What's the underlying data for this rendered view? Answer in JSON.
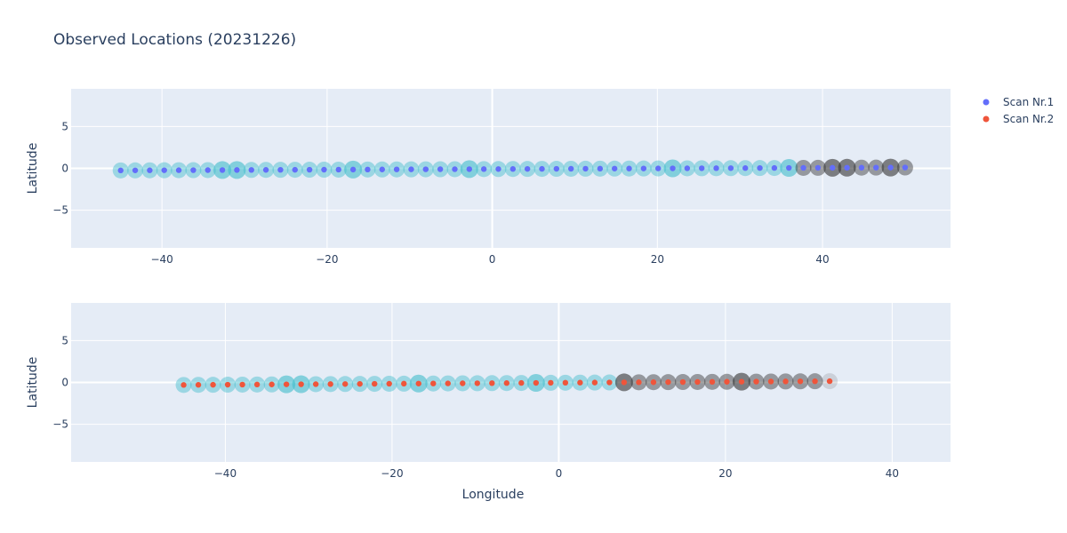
{
  "title": "Observed Locations (20231226)",
  "colors": {
    "plot_bg": "#e5ecf6",
    "grid": "#ffffff",
    "scan1": "#636efa",
    "scan2": "#ef553b",
    "halo_cyan": "#40bccc",
    "halo_dark": "#333333"
  },
  "legend": [
    {
      "name": "Scan Nr.1",
      "color": "#636efa"
    },
    {
      "name": "Scan Nr.2",
      "color": "#ef553b"
    }
  ],
  "chart_data": [
    {
      "type": "scatter",
      "name": "Scan Nr.1",
      "xlabel": "",
      "ylabel": "Latitude",
      "xlim": [
        -51,
        55.5
      ],
      "ylim": [
        -9.5,
        9.5
      ],
      "x_ticks": [
        -40,
        -20,
        0,
        20,
        40
      ],
      "x_tick_labels": [
        "−40",
        "−20",
        "0",
        "20",
        "40"
      ],
      "y_ticks": [
        -5,
        0,
        5
      ],
      "y_tick_labels": [
        "−5",
        "0",
        "5"
      ],
      "x_start": -45,
      "x_end": 50,
      "y_start": -0.25,
      "y_end": 0.1,
      "n_points": 55,
      "dark_from_x": 37,
      "emphasis_x": [
        -31.5,
        -17,
        -3,
        22,
        36,
        41,
        43,
        48.5
      ]
    },
    {
      "type": "scatter",
      "name": "Scan Nr.2",
      "xlabel": "Longitude",
      "ylabel": "Latitude",
      "xlim": [
        -58.5,
        47
      ],
      "ylim": [
        -9.5,
        9.5
      ],
      "x_ticks": [
        -40,
        -20,
        0,
        20,
        40
      ],
      "x_tick_labels": [
        "−40",
        "−20",
        "0",
        "20",
        "40"
      ],
      "y_ticks": [
        -5,
        0,
        5
      ],
      "y_tick_labels": [
        "−5",
        "0",
        "5"
      ],
      "x_start": -45,
      "x_end": 32.5,
      "y_start": -0.3,
      "y_end": 0.15,
      "n_points": 45,
      "dark_from_x": 7,
      "emphasis_x": [
        -31.5,
        -17,
        -3,
        7.5,
        22
      ]
    }
  ]
}
